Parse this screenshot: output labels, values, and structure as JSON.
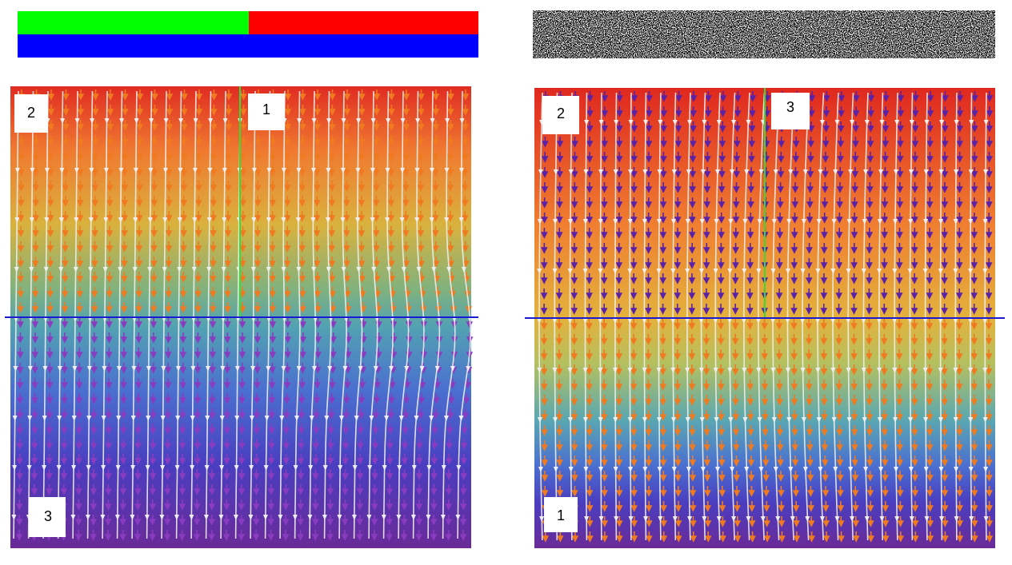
{
  "left_panel": {
    "labels": [
      "2",
      "1",
      "3"
    ]
  },
  "right_panel": {
    "labels": [
      "2",
      "3",
      "1"
    ]
  }
}
